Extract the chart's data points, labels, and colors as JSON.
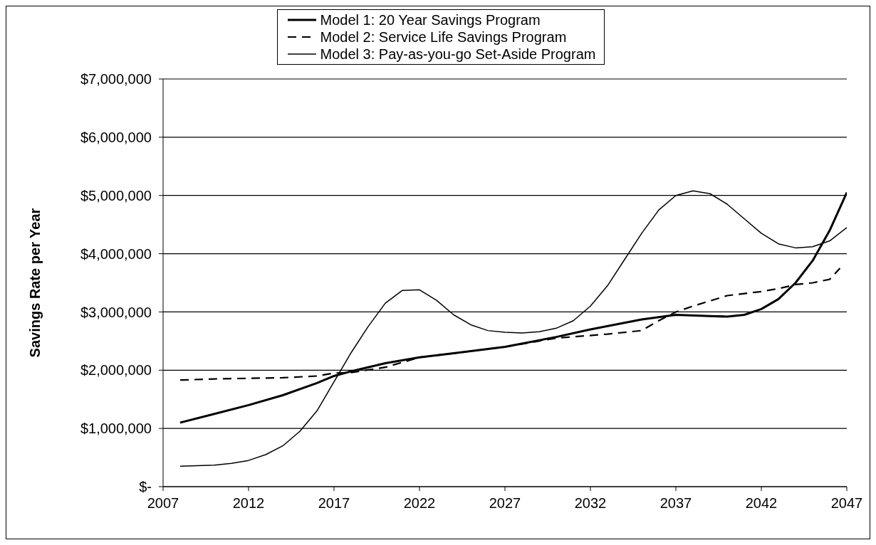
{
  "chart_data": {
    "type": "line",
    "ylabel": "Savings Rate per Year",
    "xlim": [
      2007,
      2047
    ],
    "xticks": [
      2007,
      2012,
      2017,
      2022,
      2027,
      2032,
      2037,
      2042,
      2047
    ],
    "ylim": [
      0,
      7000000
    ],
    "yticks": [
      {
        "value": 0,
        "label": "$-"
      },
      {
        "value": 1000000,
        "label": "$1,000,000"
      },
      {
        "value": 2000000,
        "label": "$2,000,000"
      },
      {
        "value": 3000000,
        "label": "$3,000,000"
      },
      {
        "value": 4000000,
        "label": "$4,000,000"
      },
      {
        "value": 5000000,
        "label": "$5,000,000"
      },
      {
        "value": 6000000,
        "label": "$6,000,000"
      },
      {
        "value": 7000000,
        "label": "$7,000,000"
      }
    ],
    "grid": "y",
    "legend": "top",
    "marker": "none",
    "series": [
      {
        "name": "Model 1: 20 Year Savings Program",
        "color": "#000000",
        "line_style": "solid",
        "x": [
          2008,
          2010,
          2012,
          2014,
          2016,
          2017,
          2018,
          2020,
          2022,
          2024,
          2027,
          2030,
          2032,
          2035,
          2037,
          2039,
          2040,
          2041,
          2042,
          2043,
          2044,
          2045,
          2046,
          2047
        ],
        "values": [
          1100000,
          1250000,
          1400000,
          1570000,
          1780000,
          1900000,
          1980000,
          2120000,
          2220000,
          2290000,
          2400000,
          2570000,
          2700000,
          2870000,
          2950000,
          2930000,
          2920000,
          2950000,
          3050000,
          3220000,
          3500000,
          3880000,
          4400000,
          5050000
        ]
      },
      {
        "name": "Model 2: Service Life Savings Program",
        "color": "#000000",
        "line_style": "dashed",
        "x": [
          2008,
          2010,
          2012,
          2014,
          2016,
          2017,
          2018,
          2020,
          2022,
          2024,
          2027,
          2030,
          2033,
          2035,
          2036,
          2037,
          2038,
          2040,
          2042,
          2043,
          2044,
          2045,
          2046,
          2046.6
        ],
        "values": [
          1830000,
          1850000,
          1860000,
          1870000,
          1900000,
          1950000,
          1960000,
          2050000,
          2220000,
          2290000,
          2400000,
          2550000,
          2620000,
          2680000,
          2850000,
          3000000,
          3100000,
          3280000,
          3350000,
          3400000,
          3470000,
          3500000,
          3560000,
          3750000
        ]
      },
      {
        "name": "Model 3: Pay-as-you-go Set-Aside Program",
        "color": "#000000",
        "line_style": "solid",
        "x": [
          2008,
          2010,
          2011,
          2012,
          2013,
          2014,
          2015,
          2016,
          2017,
          2018,
          2019,
          2020,
          2021,
          2022,
          2023,
          2024,
          2025,
          2026,
          2027,
          2028,
          2029,
          2030,
          2031,
          2032,
          2033,
          2034,
          2035,
          2036,
          2037,
          2038,
          2039,
          2040,
          2041,
          2042,
          2043,
          2044,
          2045,
          2046,
          2047
        ],
        "values": [
          350000,
          370000,
          400000,
          450000,
          550000,
          700000,
          950000,
          1300000,
          1800000,
          2300000,
          2750000,
          3150000,
          3370000,
          3380000,
          3200000,
          2950000,
          2780000,
          2680000,
          2650000,
          2640000,
          2660000,
          2720000,
          2850000,
          3100000,
          3450000,
          3900000,
          4350000,
          4750000,
          5000000,
          5080000,
          5030000,
          4850000,
          4600000,
          4350000,
          4170000,
          4100000,
          4120000,
          4220000,
          4450000
        ]
      }
    ]
  }
}
